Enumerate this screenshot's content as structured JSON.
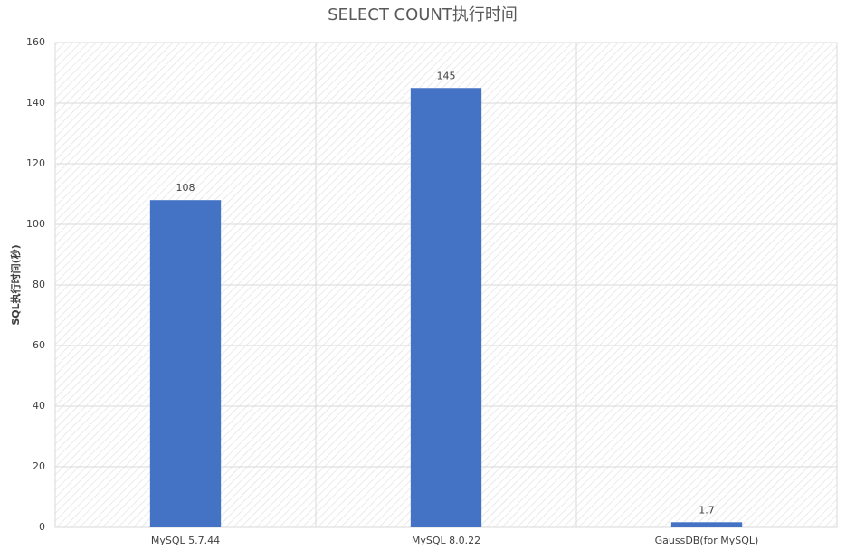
{
  "chart_data": {
    "type": "bar",
    "title": "SELECT COUNT执行时间",
    "y_label": "SQL执行时间(秒)",
    "categories": [
      "MySQL 5.7.44",
      "MySQL 8.0.22",
      "GaussDB(for MySQL)"
    ],
    "values": [
      108,
      145,
      1.7
    ],
    "color": "#4472c4",
    "ylim": [
      0,
      160
    ],
    "yticks": [
      0,
      20,
      40,
      60,
      80,
      100,
      120,
      140,
      160
    ],
    "grid": true
  }
}
